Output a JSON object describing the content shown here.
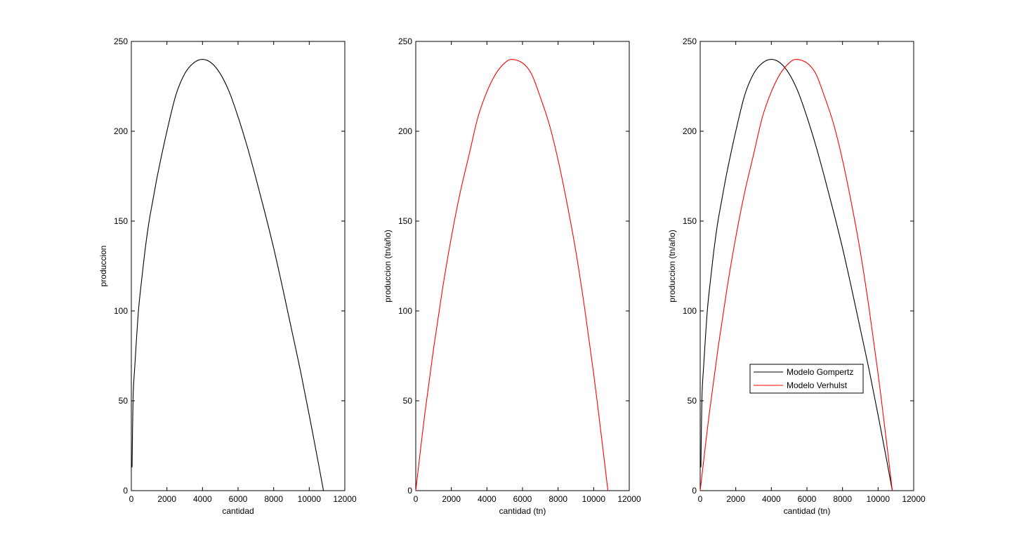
{
  "chart_data": [
    {
      "type": "line",
      "title": "",
      "xlabel": "cantidad",
      "ylabel": "produccion",
      "xlim": [
        0,
        12000
      ],
      "ylim": [
        0,
        250
      ],
      "xticks": [
        "0",
        "2000",
        "4000",
        "6000",
        "8000",
        "10000",
        "12000"
      ],
      "yticks": [
        "0",
        "50",
        "100",
        "150",
        "200",
        "250"
      ],
      "grid": false,
      "series": [
        {
          "color": "#000000",
          "x": [
            40,
            100,
            200,
            400,
            600,
            800,
            1000,
            1200,
            1500,
            2000,
            2500,
            3000,
            3500,
            4000,
            4500,
            5000,
            5500,
            6000,
            6500,
            7000,
            7500,
            8000,
            8500,
            9000,
            9500,
            10000,
            10500,
            10800
          ],
          "y": [
            13,
            52,
            70,
            100,
            119,
            136,
            150,
            161,
            177,
            200,
            220,
            232,
            238,
            240,
            238,
            232,
            222,
            208,
            192,
            174,
            155,
            135,
            113,
            90,
            67,
            42,
            16,
            0
          ]
        }
      ]
    },
    {
      "type": "line",
      "title": "",
      "xlabel": "cantidad (tn)",
      "ylabel": "produccion (tn/año)",
      "xlim": [
        0,
        12000
      ],
      "ylim": [
        0,
        250
      ],
      "xticks": [
        "0",
        "2000",
        "4000",
        "6000",
        "8000",
        "10000",
        "12000"
      ],
      "yticks": [
        "0",
        "50",
        "100",
        "150",
        "200",
        "250"
      ],
      "grid": false,
      "series": [
        {
          "color": "#ff0000",
          "x": [
            0,
            500,
            1000,
            1500,
            2000,
            2500,
            3000,
            3500,
            4000,
            4500,
            5000,
            5400,
            6000,
            6500,
            7000,
            7500,
            8000,
            8500,
            9000,
            9500,
            10000,
            10500,
            10800
          ],
          "y": [
            0,
            42,
            79,
            112,
            141,
            166,
            187,
            208,
            222,
            232,
            238,
            240,
            238,
            232,
            219,
            204,
            184,
            160,
            133,
            101,
            65,
            25,
            0
          ]
        }
      ]
    },
    {
      "type": "line",
      "title": "",
      "xlabel": "cantidad (tn)",
      "ylabel": "produccion (tn/año)",
      "xlim": [
        0,
        12000
      ],
      "ylim": [
        0,
        250
      ],
      "xticks": [
        "0",
        "2000",
        "4000",
        "6000",
        "8000",
        "10000",
        "12000"
      ],
      "yticks": [
        "0",
        "50",
        "100",
        "150",
        "200",
        "250"
      ],
      "grid": false,
      "legend_position": "lower-middle",
      "series": [
        {
          "name": "Modelo Gompertz",
          "color": "#000000",
          "x": [
            40,
            100,
            200,
            400,
            600,
            800,
            1000,
            1200,
            1500,
            2000,
            2500,
            3000,
            3500,
            4000,
            4500,
            5000,
            5500,
            6000,
            6500,
            7000,
            7500,
            8000,
            8500,
            9000,
            9500,
            10000,
            10500,
            10800
          ],
          "y": [
            13,
            52,
            70,
            100,
            119,
            136,
            150,
            161,
            177,
            200,
            220,
            232,
            238,
            240,
            238,
            232,
            222,
            208,
            192,
            174,
            155,
            135,
            113,
            90,
            67,
            42,
            16,
            0
          ]
        },
        {
          "name": "Modelo Verhulst",
          "color": "#ff0000",
          "x": [
            0,
            500,
            1000,
            1500,
            2000,
            2500,
            3000,
            3500,
            4000,
            4500,
            5000,
            5400,
            6000,
            6500,
            7000,
            7500,
            8000,
            8500,
            9000,
            9500,
            10000,
            10500,
            10800
          ],
          "y": [
            0,
            42,
            79,
            112,
            141,
            166,
            187,
            208,
            222,
            232,
            238,
            240,
            238,
            232,
            219,
            204,
            184,
            160,
            133,
            101,
            65,
            25,
            0
          ]
        }
      ]
    }
  ]
}
